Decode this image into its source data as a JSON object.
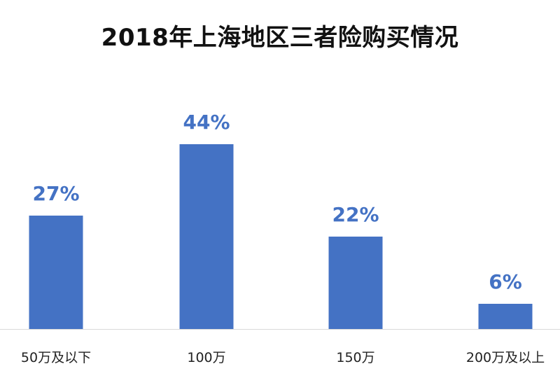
{
  "chart_data": {
    "type": "bar",
    "title": "2018年上海地区三者险购买情况",
    "xlabel": "",
    "ylabel": "",
    "categories": [
      "50万及以下",
      "100万",
      "150万",
      "200万及以上"
    ],
    "values": [
      27,
      44,
      22,
      6
    ],
    "data_labels": [
      "27%",
      "44%",
      "22%",
      "6%"
    ],
    "unit": "%",
    "ylim": [
      0,
      50
    ],
    "grid": false,
    "legend": "none",
    "colors": {
      "bar": "#4472C4",
      "label": "#4472C4",
      "axis": "#D9D9D9"
    }
  }
}
